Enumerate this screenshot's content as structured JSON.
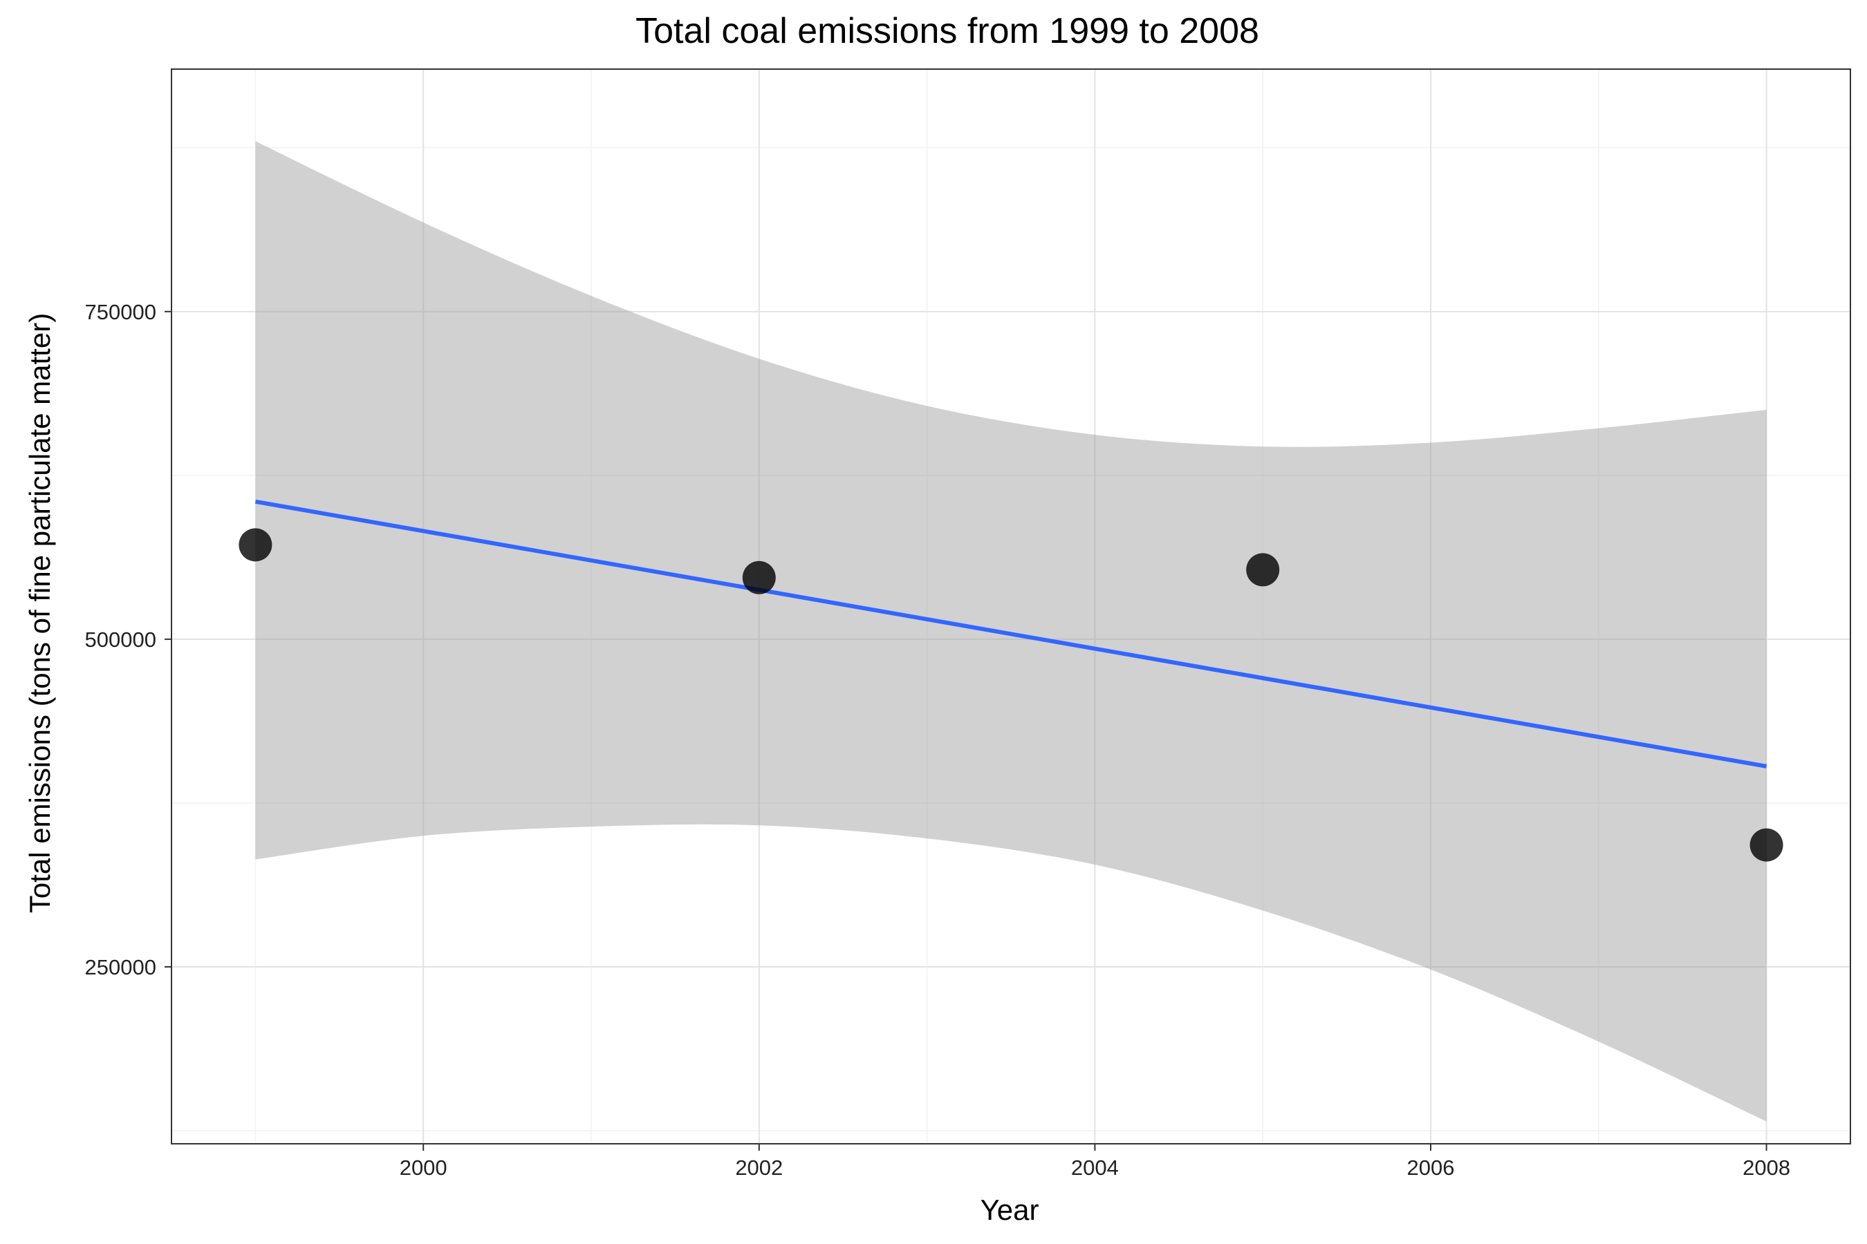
{
  "chart_data": {
    "type": "scatter",
    "title": "Total coal emissions from 1999 to 2008",
    "xlabel": "Year",
    "ylabel": "Total emissions (tons of fine particulate matter)",
    "xlim": [
      1998.5,
      2008.5
    ],
    "ylim": [
      115000,
      935000
    ],
    "x_ticks": [
      2000,
      2002,
      2004,
      2006,
      2008
    ],
    "x_tick_labels": [
      "2000",
      "2002",
      "2004",
      "2006",
      "2008"
    ],
    "y_ticks": [
      250000,
      500000,
      750000
    ],
    "y_tick_labels": [
      "250000",
      "500000",
      "750000"
    ],
    "grid": true,
    "points": [
      {
        "x": 1999,
        "y": 572000
      },
      {
        "x": 2002,
        "y": 547000
      },
      {
        "x": 2005,
        "y": 553000
      },
      {
        "x": 2008,
        "y": 343000
      }
    ],
    "trend_line": {
      "type": "linear-fit",
      "color": "#3366FF",
      "x": [
        1999,
        2008
      ],
      "y": [
        605000,
        403000
      ]
    },
    "confidence_band": {
      "color": "#999999",
      "x": [
        1999,
        2000,
        2001,
        2002,
        2003,
        2004,
        2005,
        2006,
        2007,
        2008
      ],
      "upper": [
        880000,
        818000,
        762000,
        714000,
        678000,
        656000,
        647000,
        650000,
        661000,
        675000
      ],
      "lower": [
        332000,
        350000,
        357000,
        358000,
        348000,
        328000,
        293000,
        248000,
        193000,
        132000
      ]
    },
    "point_color": "#000000"
  }
}
